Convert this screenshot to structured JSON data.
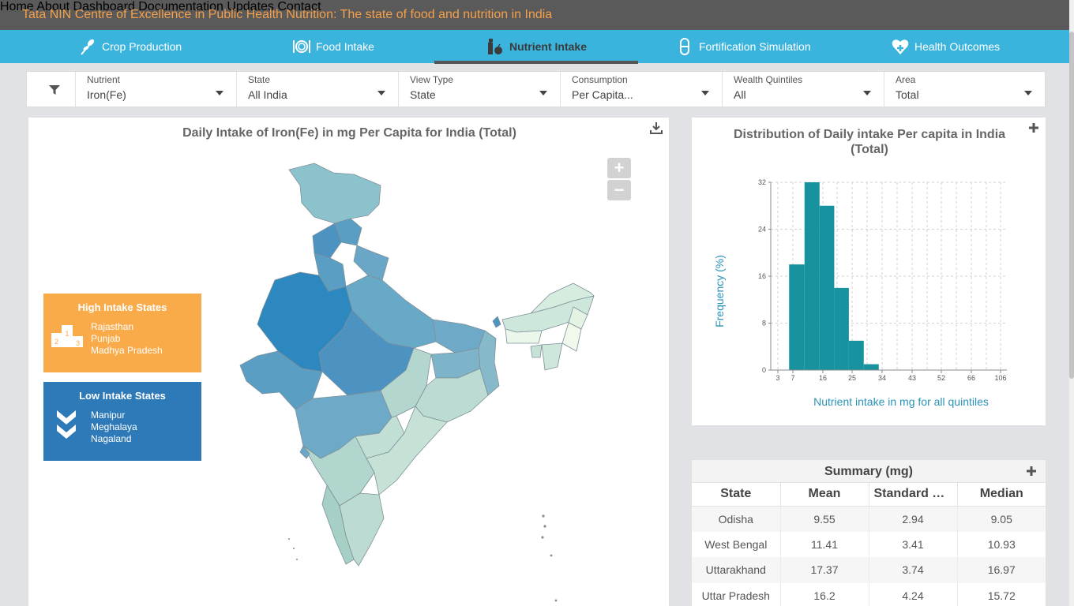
{
  "header": {
    "title": "Tata NIN Centre of Excellence in Public Health Nutrition: The state of food and nutrition in India",
    "nav": [
      "Home",
      "About",
      "Dashboard",
      "Documentation",
      "Updates",
      "Contact"
    ]
  },
  "tabs": [
    {
      "label": "Crop Production",
      "icon": "wheat-icon"
    },
    {
      "label": "Food Intake",
      "icon": "plate-icon"
    },
    {
      "label": "Nutrient Intake",
      "icon": "bottle-icon",
      "active": true
    },
    {
      "label": "Fortification Simulation",
      "icon": "capsule-icon"
    },
    {
      "label": "Health Outcomes",
      "icon": "heart-plus-icon"
    }
  ],
  "filters": [
    {
      "label": "Nutrient",
      "value": "Iron(Fe)"
    },
    {
      "label": "State",
      "value": "All India"
    },
    {
      "label": "View Type",
      "value": "State"
    },
    {
      "label": "Consumption",
      "value": "Per Capita..."
    },
    {
      "label": "Wealth Quintiles",
      "value": "All"
    },
    {
      "label": "Area",
      "value": "Total"
    }
  ],
  "map_panel": {
    "title": "Daily Intake of Iron(Fe) in mg Per Capita for India (Total)",
    "zoom_in": "+",
    "zoom_out": "−",
    "high": {
      "title": "High Intake States",
      "states": [
        "Rajasthan",
        "Punjab",
        "Madhya Pradesh"
      ]
    },
    "low": {
      "title": "Low Intake States",
      "states": [
        "Manipur",
        "Meghalaya",
        "Nagaland"
      ]
    },
    "podium_numbers": [
      "2",
      "1",
      "3"
    ]
  },
  "hist_panel": {
    "title": "Distribution of Daily intake Per capita in India (Total)"
  },
  "chart_data": {
    "type": "bar",
    "title": "Distribution of Daily intake Per capita in India (Total)",
    "xlabel": "Nutrient intake in mg for all quintiles",
    "ylabel": "Frequency (%)",
    "x_ticks": [
      "3",
      "7",
      "16",
      "25",
      "34",
      "43",
      "52",
      "66",
      "106"
    ],
    "y_ticks": [
      0,
      8,
      16,
      24,
      32
    ],
    "ylim": [
      0,
      32
    ],
    "bins": [
      {
        "from": 6,
        "to": 10.5,
        "value": 18
      },
      {
        "from": 10.5,
        "to": 15,
        "value": 32
      },
      {
        "from": 15,
        "to": 19.5,
        "value": 28
      },
      {
        "from": 19.5,
        "to": 24,
        "value": 14
      },
      {
        "from": 24,
        "to": 28.5,
        "value": 5
      },
      {
        "from": 28.5,
        "to": 33,
        "value": 1
      }
    ],
    "color": "#17939f"
  },
  "summary": {
    "title": "Summary (mg)",
    "columns": [
      "State",
      "Mean",
      "Standard Deviation",
      "Median"
    ],
    "rows": [
      [
        "Odisha",
        "9.55",
        "2.94",
        "9.05"
      ],
      [
        "West Bengal",
        "11.41",
        "3.41",
        "10.93"
      ],
      [
        "Uttarakhand",
        "17.37",
        "3.74",
        "16.97"
      ],
      [
        "Uttar Pradesh",
        "16.2",
        "4.24",
        "15.72"
      ]
    ]
  }
}
